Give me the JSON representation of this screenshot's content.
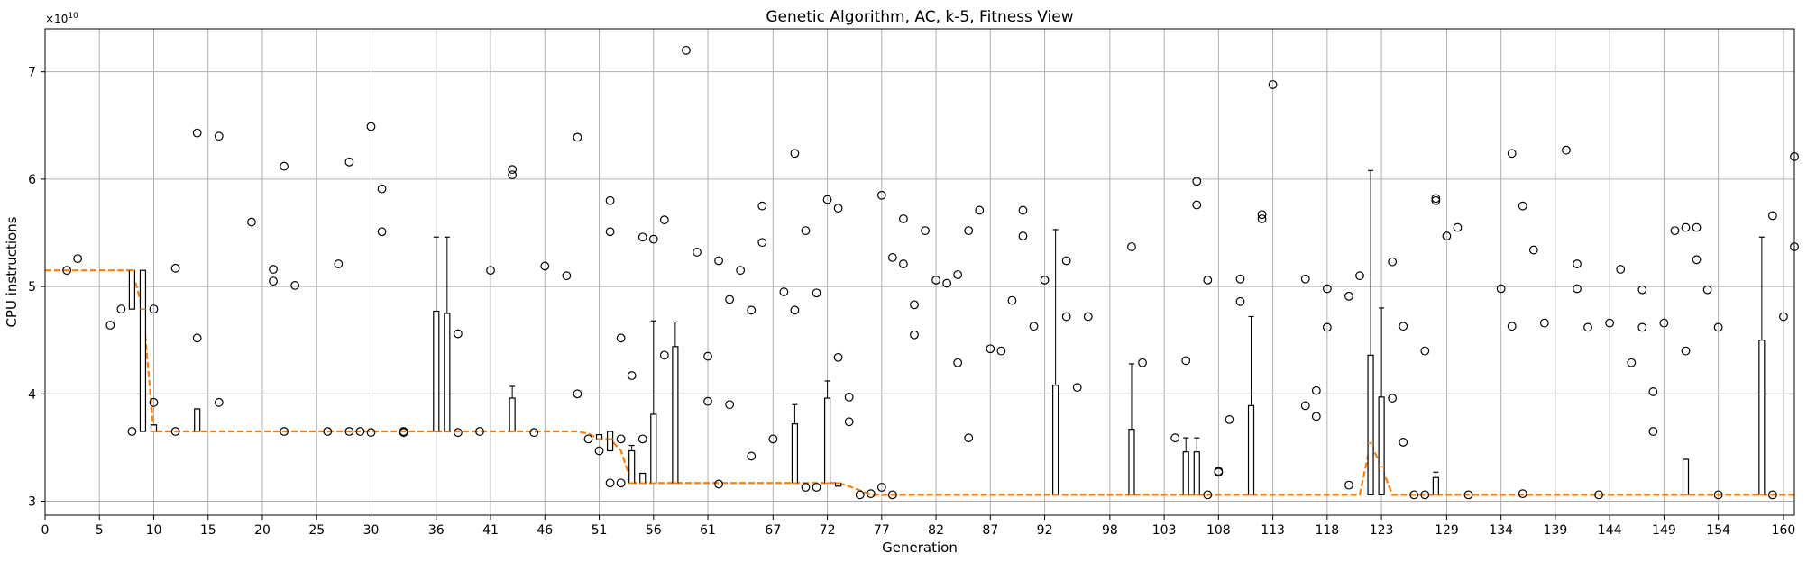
{
  "chart_data": {
    "type": "box",
    "title": "Genetic Algorithm, AC, k-5, Fitness View",
    "xlabel": "Generation",
    "ylabel": "CPU instructions",
    "y_exponent_label": "×10",
    "y_exponent_power": "10",
    "xlim": [
      0,
      161
    ],
    "ylim": [
      2.87,
      7.4
    ],
    "grid": true,
    "x_tick_values": [
      0,
      5,
      10,
      15,
      20,
      25,
      30,
      36,
      41,
      46,
      51,
      56,
      61,
      67,
      72,
      77,
      82,
      87,
      92,
      98,
      103,
      108,
      113,
      118,
      123,
      129,
      134,
      139,
      144,
      149,
      154,
      160
    ],
    "x_tick_labels": [
      "0",
      "5",
      "10",
      "15",
      "20",
      "25",
      "30",
      "36",
      "41",
      "46",
      "51",
      "56",
      "61",
      "67",
      "72",
      "77",
      "82",
      "87",
      "92",
      "98",
      "103",
      "108",
      "113",
      "118",
      "123",
      "129",
      "134",
      "139",
      "144",
      "149",
      "154",
      "160"
    ],
    "y_tick_values": [
      3,
      4,
      5,
      6,
      7
    ],
    "y_tick_labels": [
      "3",
      "4",
      "5",
      "6",
      "7"
    ],
    "colors": {
      "median": "#ff7f0e",
      "box": "#000000",
      "grid": "#b0b0b0",
      "dashed": "#1f77b4"
    },
    "boxes": [
      [
        8,
        5.15,
        4.79,
        5.15,
        5.15,
        5.15
      ],
      [
        9,
        3.65,
        3.65,
        4.79,
        5.15,
        4.79
      ],
      [
        10,
        3.65,
        3.65,
        3.65,
        3.71,
        3.71
      ],
      [
        14,
        3.65,
        3.65,
        3.65,
        3.86,
        3.86
      ],
      [
        36,
        3.65,
        3.65,
        3.65,
        4.77,
        5.46
      ],
      [
        37,
        3.65,
        3.65,
        3.65,
        4.75,
        5.46
      ],
      [
        43,
        3.65,
        3.65,
        3.65,
        3.96,
        4.07
      ],
      [
        51,
        3.58,
        3.58,
        3.58,
        3.62,
        3.62
      ],
      [
        52,
        3.47,
        3.47,
        3.58,
        3.65,
        3.65
      ],
      [
        54,
        3.17,
        3.17,
        3.17,
        3.47,
        3.52
      ],
      [
        55,
        3.17,
        3.17,
        3.17,
        3.26,
        3.26
      ],
      [
        56,
        3.17,
        3.17,
        3.17,
        3.81,
        4.68
      ],
      [
        58,
        3.17,
        3.17,
        3.17,
        4.44,
        4.67
      ],
      [
        69,
        3.17,
        3.17,
        3.17,
        3.72,
        3.9
      ],
      [
        72,
        3.17,
        3.17,
        3.17,
        3.96,
        4.12
      ],
      [
        73,
        3.14,
        3.14,
        3.17,
        3.17,
        3.17
      ],
      [
        93,
        3.06,
        3.06,
        3.06,
        4.08,
        5.53
      ],
      [
        100,
        3.06,
        3.06,
        3.06,
        3.67,
        4.28
      ],
      [
        105,
        3.06,
        3.06,
        3.06,
        3.46,
        3.59
      ],
      [
        106,
        3.06,
        3.06,
        3.06,
        3.46,
        3.59
      ],
      [
        111,
        3.06,
        3.06,
        3.06,
        3.89,
        4.72
      ],
      [
        122,
        3.06,
        3.06,
        3.54,
        4.36,
        6.08
      ],
      [
        123,
        3.06,
        3.06,
        3.32,
        3.97,
        4.8
      ],
      [
        128,
        3.06,
        3.06,
        3.06,
        3.22,
        3.27
      ],
      [
        151,
        3.06,
        3.06,
        3.06,
        3.39,
        3.39
      ],
      [
        158,
        3.06,
        3.06,
        3.06,
        4.5,
        5.46
      ]
    ],
    "medians": [
      [
        0,
        5.15
      ],
      [
        1,
        5.15
      ],
      [
        2,
        5.15
      ],
      [
        3,
        5.15
      ],
      [
        4,
        5.15
      ],
      [
        5,
        5.15
      ],
      [
        6,
        5.15
      ],
      [
        7,
        5.15
      ],
      [
        8,
        5.15
      ],
      [
        9,
        4.79
      ],
      [
        10,
        3.65
      ],
      [
        11,
        3.65
      ],
      [
        12,
        3.65
      ],
      [
        13,
        3.65
      ],
      [
        14,
        3.65
      ],
      [
        15,
        3.65
      ],
      [
        16,
        3.65
      ],
      [
        17,
        3.65
      ],
      [
        18,
        3.65
      ],
      [
        19,
        3.65
      ],
      [
        20,
        3.65
      ],
      [
        21,
        3.65
      ],
      [
        22,
        3.65
      ],
      [
        23,
        3.65
      ],
      [
        24,
        3.65
      ],
      [
        25,
        3.65
      ],
      [
        26,
        3.65
      ],
      [
        27,
        3.65
      ],
      [
        28,
        3.65
      ],
      [
        29,
        3.65
      ],
      [
        30,
        3.65
      ],
      [
        31,
        3.65
      ],
      [
        32,
        3.65
      ],
      [
        33,
        3.65
      ],
      [
        34,
        3.65
      ],
      [
        35,
        3.65
      ],
      [
        36,
        3.65
      ],
      [
        37,
        3.65
      ],
      [
        38,
        3.65
      ],
      [
        39,
        3.65
      ],
      [
        40,
        3.65
      ],
      [
        41,
        3.65
      ],
      [
        42,
        3.65
      ],
      [
        43,
        3.65
      ],
      [
        44,
        3.65
      ],
      [
        45,
        3.65
      ],
      [
        46,
        3.65
      ],
      [
        47,
        3.65
      ],
      [
        48,
        3.65
      ],
      [
        49,
        3.65
      ],
      [
        50,
        3.63
      ],
      [
        51,
        3.58
      ],
      [
        52,
        3.58
      ],
      [
        53,
        3.47
      ],
      [
        54,
        3.17
      ],
      [
        55,
        3.17
      ],
      [
        56,
        3.17
      ],
      [
        57,
        3.17
      ],
      [
        58,
        3.17
      ],
      [
        59,
        3.17
      ],
      [
        60,
        3.17
      ],
      [
        61,
        3.17
      ],
      [
        62,
        3.17
      ],
      [
        63,
        3.17
      ],
      [
        64,
        3.17
      ],
      [
        65,
        3.17
      ],
      [
        66,
        3.17
      ],
      [
        67,
        3.17
      ],
      [
        68,
        3.17
      ],
      [
        69,
        3.17
      ],
      [
        70,
        3.17
      ],
      [
        71,
        3.17
      ],
      [
        72,
        3.17
      ],
      [
        73,
        3.17
      ],
      [
        74,
        3.14
      ],
      [
        75,
        3.1
      ],
      [
        76,
        3.06
      ],
      [
        77,
        3.06
      ],
      [
        78,
        3.06
      ],
      [
        79,
        3.06
      ],
      [
        80,
        3.06
      ],
      [
        81,
        3.06
      ],
      [
        82,
        3.06
      ],
      [
        83,
        3.06
      ],
      [
        84,
        3.06
      ],
      [
        85,
        3.06
      ],
      [
        86,
        3.06
      ],
      [
        87,
        3.06
      ],
      [
        88,
        3.06
      ],
      [
        89,
        3.06
      ],
      [
        90,
        3.06
      ],
      [
        91,
        3.06
      ],
      [
        92,
        3.06
      ],
      [
        93,
        3.06
      ],
      [
        94,
        3.06
      ],
      [
        95,
        3.06
      ],
      [
        96,
        3.06
      ],
      [
        97,
        3.06
      ],
      [
        98,
        3.06
      ],
      [
        99,
        3.06
      ],
      [
        100,
        3.06
      ],
      [
        101,
        3.06
      ],
      [
        102,
        3.06
      ],
      [
        103,
        3.06
      ],
      [
        104,
        3.06
      ],
      [
        105,
        3.06
      ],
      [
        106,
        3.06
      ],
      [
        107,
        3.06
      ],
      [
        108,
        3.06
      ],
      [
        109,
        3.06
      ],
      [
        110,
        3.06
      ],
      [
        111,
        3.06
      ],
      [
        112,
        3.06
      ],
      [
        113,
        3.06
      ],
      [
        114,
        3.06
      ],
      [
        115,
        3.06
      ],
      [
        116,
        3.06
      ],
      [
        117,
        3.06
      ],
      [
        118,
        3.06
      ],
      [
        119,
        3.06
      ],
      [
        120,
        3.06
      ],
      [
        121,
        3.06
      ],
      [
        122,
        3.54
      ],
      [
        123,
        3.32
      ],
      [
        124,
        3.06
      ],
      [
        125,
        3.06
      ],
      [
        126,
        3.06
      ],
      [
        127,
        3.06
      ],
      [
        128,
        3.06
      ],
      [
        129,
        3.06
      ],
      [
        130,
        3.06
      ],
      [
        131,
        3.06
      ],
      [
        132,
        3.06
      ],
      [
        133,
        3.06
      ],
      [
        134,
        3.06
      ],
      [
        135,
        3.06
      ],
      [
        136,
        3.06
      ],
      [
        137,
        3.06
      ],
      [
        138,
        3.06
      ],
      [
        139,
        3.06
      ],
      [
        140,
        3.06
      ],
      [
        141,
        3.06
      ],
      [
        142,
        3.06
      ],
      [
        143,
        3.06
      ],
      [
        144,
        3.06
      ],
      [
        145,
        3.06
      ],
      [
        146,
        3.06
      ],
      [
        147,
        3.06
      ],
      [
        148,
        3.06
      ],
      [
        149,
        3.06
      ],
      [
        150,
        3.06
      ],
      [
        151,
        3.06
      ],
      [
        152,
        3.06
      ],
      [
        153,
        3.06
      ],
      [
        154,
        3.06
      ],
      [
        155,
        3.06
      ],
      [
        156,
        3.06
      ],
      [
        157,
        3.06
      ],
      [
        158,
        3.06
      ],
      [
        159,
        3.06
      ],
      [
        160,
        3.06
      ],
      [
        161,
        3.06
      ]
    ],
    "outliers": [
      [
        2,
        5.15
      ],
      [
        3,
        5.26
      ],
      [
        6,
        4.64
      ],
      [
        7,
        4.79
      ],
      [
        8,
        3.65
      ],
      [
        10,
        4.79
      ],
      [
        10,
        3.92
      ],
      [
        12,
        5.17
      ],
      [
        12,
        3.65
      ],
      [
        14,
        6.43
      ],
      [
        14,
        4.52
      ],
      [
        16,
        6.4
      ],
      [
        16,
        3.92
      ],
      [
        19,
        5.6
      ],
      [
        21,
        5.16
      ],
      [
        21,
        5.05
      ],
      [
        22,
        6.12
      ],
      [
        22,
        3.65
      ],
      [
        23,
        5.01
      ],
      [
        26,
        3.65
      ],
      [
        27,
        5.21
      ],
      [
        28,
        6.16
      ],
      [
        28,
        3.65
      ],
      [
        29,
        3.65
      ],
      [
        30,
        6.49
      ],
      [
        30,
        3.64
      ],
      [
        31,
        5.91
      ],
      [
        31,
        5.51
      ],
      [
        33,
        3.64
      ],
      [
        33,
        3.65
      ],
      [
        38,
        4.56
      ],
      [
        38,
        3.64
      ],
      [
        40,
        3.65
      ],
      [
        41,
        5.15
      ],
      [
        43,
        6.09
      ],
      [
        43,
        6.04
      ],
      [
        45,
        3.64
      ],
      [
        46,
        5.19
      ],
      [
        48,
        5.1
      ],
      [
        49,
        6.39
      ],
      [
        49,
        4.0
      ],
      [
        50,
        3.58
      ],
      [
        51,
        3.47
      ],
      [
        52,
        3.17
      ],
      [
        52,
        5.8
      ],
      [
        52,
        5.51
      ],
      [
        53,
        4.52
      ],
      [
        53,
        3.58
      ],
      [
        53,
        3.17
      ],
      [
        54,
        4.17
      ],
      [
        55,
        5.46
      ],
      [
        55,
        3.58
      ],
      [
        56,
        5.44
      ],
      [
        57,
        5.62
      ],
      [
        57,
        4.36
      ],
      [
        59,
        7.2
      ],
      [
        60,
        5.32
      ],
      [
        61,
        4.35
      ],
      [
        61,
        3.93
      ],
      [
        62,
        5.24
      ],
      [
        62,
        3.16
      ],
      [
        63,
        4.88
      ],
      [
        63,
        3.9
      ],
      [
        64,
        5.15
      ],
      [
        65,
        4.78
      ],
      [
        65,
        3.42
      ],
      [
        66,
        5.75
      ],
      [
        66,
        5.41
      ],
      [
        67,
        3.58
      ],
      [
        68,
        4.95
      ],
      [
        69,
        6.24
      ],
      [
        69,
        4.78
      ],
      [
        70,
        5.52
      ],
      [
        70,
        3.13
      ],
      [
        71,
        4.94
      ],
      [
        71,
        3.13
      ],
      [
        72,
        5.81
      ],
      [
        73,
        5.73
      ],
      [
        73,
        4.34
      ],
      [
        74,
        3.97
      ],
      [
        74,
        3.74
      ],
      [
        75,
        3.06
      ],
      [
        76,
        3.07
      ],
      [
        77,
        5.85
      ],
      [
        77,
        3.13
      ],
      [
        78,
        5.27
      ],
      [
        78,
        3.06
      ],
      [
        79,
        5.21
      ],
      [
        79,
        5.63
      ],
      [
        80,
        4.83
      ],
      [
        80,
        4.55
      ],
      [
        81,
        5.52
      ],
      [
        82,
        5.06
      ],
      [
        83,
        5.03
      ],
      [
        84,
        5.11
      ],
      [
        84,
        4.29
      ],
      [
        85,
        5.52
      ],
      [
        85,
        3.59
      ],
      [
        86,
        5.71
      ],
      [
        87,
        4.42
      ],
      [
        88,
        4.4
      ],
      [
        89,
        4.87
      ],
      [
        90,
        5.71
      ],
      [
        90,
        5.47
      ],
      [
        91,
        4.63
      ],
      [
        92,
        5.06
      ],
      [
        94,
        5.24
      ],
      [
        94,
        4.72
      ],
      [
        95,
        4.06
      ],
      [
        96,
        4.72
      ],
      [
        100,
        5.37
      ],
      [
        101,
        4.29
      ],
      [
        104,
        3.59
      ],
      [
        105,
        4.31
      ],
      [
        106,
        5.98
      ],
      [
        106,
        5.76
      ],
      [
        107,
        5.06
      ],
      [
        107,
        3.06
      ],
      [
        108,
        3.28
      ],
      [
        108,
        3.27
      ],
      [
        109,
        3.76
      ],
      [
        110,
        5.07
      ],
      [
        110,
        4.86
      ],
      [
        112,
        5.67
      ],
      [
        112,
        5.63
      ],
      [
        113,
        6.88
      ],
      [
        116,
        5.07
      ],
      [
        116,
        3.89
      ],
      [
        117,
        4.03
      ],
      [
        117,
        3.79
      ],
      [
        118,
        4.98
      ],
      [
        118,
        4.62
      ],
      [
        120,
        4.91
      ],
      [
        120,
        3.15
      ],
      [
        121,
        5.1
      ],
      [
        124,
        5.23
      ],
      [
        124,
        3.96
      ],
      [
        125,
        4.63
      ],
      [
        125,
        3.55
      ],
      [
        126,
        3.06
      ],
      [
        127,
        4.4
      ],
      [
        127,
        3.06
      ],
      [
        128,
        5.82
      ],
      [
        128,
        5.8
      ],
      [
        129,
        5.47
      ],
      [
        130,
        5.55
      ],
      [
        131,
        3.06
      ],
      [
        134,
        4.98
      ],
      [
        135,
        6.24
      ],
      [
        135,
        4.63
      ],
      [
        136,
        5.75
      ],
      [
        136,
        3.07
      ],
      [
        137,
        5.34
      ],
      [
        138,
        4.66
      ],
      [
        140,
        6.27
      ],
      [
        141,
        5.21
      ],
      [
        141,
        4.98
      ],
      [
        142,
        4.62
      ],
      [
        143,
        3.06
      ],
      [
        144,
        4.66
      ],
      [
        145,
        5.16
      ],
      [
        146,
        4.29
      ],
      [
        147,
        4.97
      ],
      [
        147,
        4.62
      ],
      [
        148,
        4.02
      ],
      [
        148,
        3.65
      ],
      [
        149,
        4.66
      ],
      [
        150,
        5.52
      ],
      [
        151,
        5.55
      ],
      [
        151,
        4.4
      ],
      [
        152,
        5.55
      ],
      [
        152,
        5.25
      ],
      [
        153,
        4.97
      ],
      [
        154,
        4.62
      ],
      [
        154,
        3.06
      ],
      [
        159,
        5.66
      ],
      [
        159,
        3.06
      ],
      [
        160,
        4.72
      ],
      [
        161,
        6.21
      ],
      [
        161,
        5.37
      ]
    ]
  }
}
